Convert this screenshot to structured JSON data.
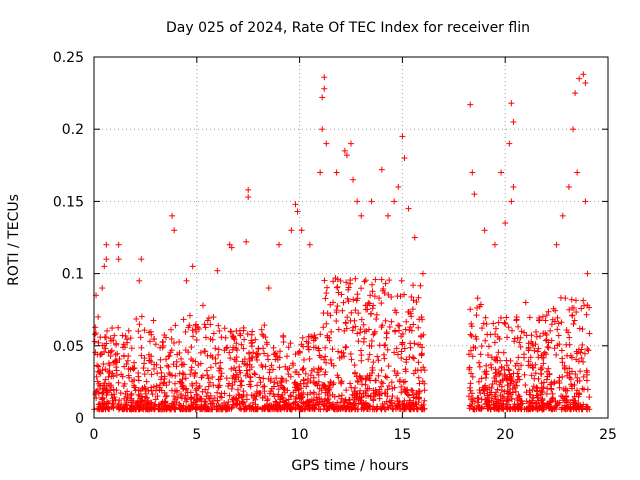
{
  "chart_data": {
    "type": "scatter",
    "title": "Day 025 of 2024, Rate Of TEC Index for receiver flin",
    "xlabel": "GPS time / hours",
    "ylabel": "ROTI / TECUs",
    "xlim": [
      0,
      25
    ],
    "ylim": [
      0,
      0.25
    ],
    "xticks": [
      0,
      5,
      10,
      15,
      20,
      25
    ],
    "yticks": [
      0,
      0.05,
      0.1,
      0.15,
      0.2,
      0.25
    ],
    "ytick_labels": [
      "0",
      "0.05",
      "0.1",
      "0.15",
      "0.2",
      "0.25"
    ],
    "grid": true,
    "marker": "+",
    "marker_color": "#ff0000",
    "data_gap_hours": [
      16.1,
      18.2
    ],
    "series": [
      {
        "points": [
          [
            0.1,
            0.085
          ],
          [
            0.2,
            0.07
          ],
          [
            0.4,
            0.09
          ],
          [
            0.5,
            0.105
          ],
          [
            0.6,
            0.12
          ],
          [
            0.6,
            0.11
          ],
          [
            1.2,
            0.12
          ],
          [
            1.2,
            0.11
          ],
          [
            2.3,
            0.11
          ],
          [
            2.2,
            0.095
          ],
          [
            3.8,
            0.14
          ],
          [
            3.9,
            0.13
          ],
          [
            4.8,
            0.105
          ],
          [
            4.5,
            0.095
          ],
          [
            5.3,
            0.078
          ],
          [
            6.0,
            0.102
          ],
          [
            6.6,
            0.12
          ],
          [
            6.7,
            0.118
          ],
          [
            7.4,
            0.122
          ],
          [
            7.5,
            0.158
          ],
          [
            7.5,
            0.153
          ],
          [
            8.5,
            0.09
          ],
          [
            9.0,
            0.12
          ],
          [
            9.6,
            0.13
          ],
          [
            9.8,
            0.148
          ],
          [
            9.9,
            0.143
          ],
          [
            10.1,
            0.13
          ],
          [
            10.5,
            0.12
          ],
          [
            11.0,
            0.17
          ],
          [
            11.1,
            0.2
          ],
          [
            11.2,
            0.236
          ],
          [
            11.2,
            0.228
          ],
          [
            11.1,
            0.222
          ],
          [
            11.3,
            0.19
          ],
          [
            11.8,
            0.17
          ],
          [
            12.2,
            0.185
          ],
          [
            12.3,
            0.182
          ],
          [
            12.5,
            0.19
          ],
          [
            12.6,
            0.165
          ],
          [
            12.8,
            0.15
          ],
          [
            13.0,
            0.14
          ],
          [
            13.5,
            0.15
          ],
          [
            14.0,
            0.172
          ],
          [
            14.3,
            0.14
          ],
          [
            14.6,
            0.15
          ],
          [
            14.8,
            0.16
          ],
          [
            15.0,
            0.195
          ],
          [
            15.1,
            0.18
          ],
          [
            15.3,
            0.145
          ],
          [
            15.6,
            0.125
          ],
          [
            16.0,
            0.1
          ],
          [
            18.3,
            0.217
          ],
          [
            18.4,
            0.17
          ],
          [
            18.5,
            0.155
          ],
          [
            19.0,
            0.13
          ],
          [
            19.5,
            0.12
          ],
          [
            19.8,
            0.17
          ],
          [
            20.0,
            0.135
          ],
          [
            20.2,
            0.19
          ],
          [
            20.3,
            0.218
          ],
          [
            20.4,
            0.205
          ],
          [
            20.4,
            0.16
          ],
          [
            20.3,
            0.15
          ],
          [
            21.0,
            0.08
          ],
          [
            22.5,
            0.12
          ],
          [
            22.8,
            0.14
          ],
          [
            23.1,
            0.16
          ],
          [
            23.3,
            0.2
          ],
          [
            23.4,
            0.225
          ],
          [
            23.6,
            0.235
          ],
          [
            23.5,
            0.17
          ],
          [
            23.8,
            0.238
          ],
          [
            23.9,
            0.232
          ],
          [
            23.9,
            0.15
          ],
          [
            24.0,
            0.1
          ]
        ]
      }
    ]
  }
}
